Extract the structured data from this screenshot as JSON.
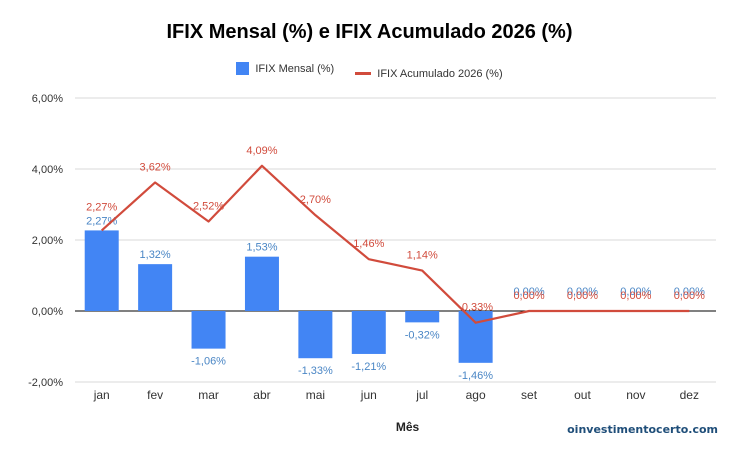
{
  "colors": {
    "bar": "#4285f4",
    "bar_label": "#4a86c5",
    "line": "#d14b3c",
    "grid": "#d9d9d9",
    "axis_text": "#333333",
    "watermark": "#1f4e79"
  },
  "watermark": "oinvestimentocerto.com",
  "chart_data": {
    "type": "bar",
    "title": "IFIX Mensal (%) e IFIX Acumulado 2026 (%)",
    "xlabel": "Mês",
    "ylabel": "",
    "ylim": [
      -2,
      6
    ],
    "yticks": [
      -2,
      0,
      2,
      4,
      6
    ],
    "ytick_labels": [
      "-2,00%",
      "0,00%",
      "2,00%",
      "4,00%",
      "6,00%"
    ],
    "grid": true,
    "legend_position": "top",
    "categories": [
      "jan",
      "fev",
      "mar",
      "abr",
      "mai",
      "jun",
      "jul",
      "ago",
      "set",
      "out",
      "nov",
      "dez"
    ],
    "series": [
      {
        "name": "IFIX Mensal (%)",
        "type": "bar",
        "values": [
          2.27,
          1.32,
          -1.06,
          1.53,
          -1.33,
          -1.21,
          -0.32,
          -1.46,
          0,
          0,
          0,
          0
        ],
        "labels": [
          "2,27%",
          "1,32%",
          "-1,06%",
          "1,53%",
          "-1,33%",
          "-1,21%",
          "-0,32%",
          "-1,46%",
          "0,00%",
          "0,00%",
          "0,00%",
          "0,00%"
        ]
      },
      {
        "name": "IFIX Acumulado 2026 (%)",
        "type": "line",
        "values": [
          2.27,
          3.62,
          2.52,
          4.09,
          2.7,
          1.46,
          1.14,
          -0.33,
          0,
          0,
          0,
          0
        ],
        "labels": [
          "2,27%",
          "3,62%",
          "2,52%",
          "4,09%",
          "2,70%",
          "1,46%",
          "1,14%",
          "-0,33%",
          "0,00%",
          "0,00%",
          "0,00%",
          "0,00%"
        ]
      }
    ]
  }
}
